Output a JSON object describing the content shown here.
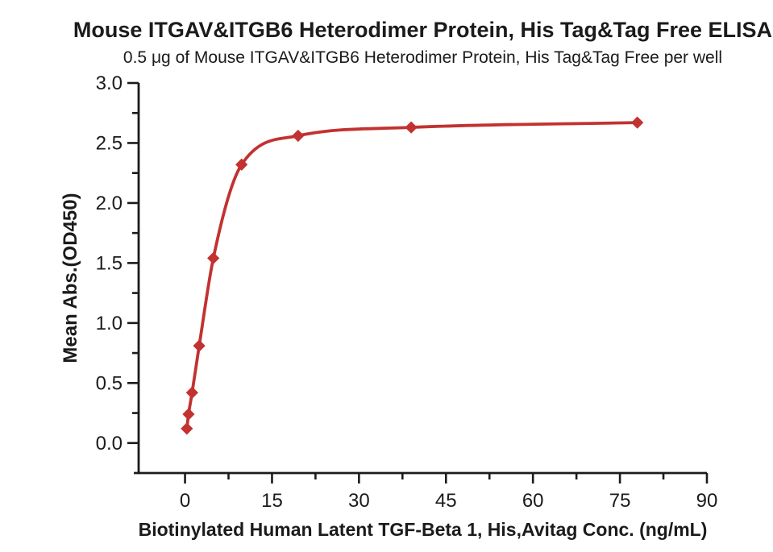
{
  "chart_data": {
    "type": "scatter",
    "title": "Mouse ITGAV&ITGB6 Heterodimer Protein, His Tag&Tag Free ELISA",
    "subtitle": "0.5 μg of Mouse ITGAV&ITGB6 Heterodimer Protein, His Tag&Tag Free per well",
    "xlabel": "Biotinylated Human Latent TGF-Beta 1, His,Avitag Conc. (ng/mL)",
    "ylabel": "Mean Abs.(OD450)",
    "xlim": [
      -8,
      90
    ],
    "ylim": [
      -0.25,
      3.0
    ],
    "x_ticks": [
      {
        "v": 0,
        "label": "0"
      },
      {
        "v": 15,
        "label": "15"
      },
      {
        "v": 30,
        "label": "30"
      },
      {
        "v": 45,
        "label": "45"
      },
      {
        "v": 60,
        "label": "60"
      },
      {
        "v": 75,
        "label": "75"
      },
      {
        "v": 90,
        "label": "90"
      }
    ],
    "x_minor_step": 7.5,
    "y_ticks": [
      {
        "v": 0.0,
        "label": "0.0"
      },
      {
        "v": 0.5,
        "label": "0.5"
      },
      {
        "v": 1.0,
        "label": "1.0"
      },
      {
        "v": 1.5,
        "label": "1.5"
      },
      {
        "v": 2.0,
        "label": "2.0"
      },
      {
        "v": 2.5,
        "label": "2.5"
      },
      {
        "v": 3.0,
        "label": "3.0"
      }
    ],
    "y_minor_step": 0.25,
    "grid": false,
    "legend": "none",
    "series": [
      {
        "marker": "diamond",
        "color": "#c23230",
        "fit_line": true,
        "x": [
          0.31,
          0.61,
          1.22,
          2.44,
          4.88,
          9.75,
          19.5,
          39,
          78
        ],
        "y": [
          0.12,
          0.24,
          0.42,
          0.81,
          1.54,
          2.32,
          2.56,
          2.63,
          2.67
        ]
      }
    ],
    "colors": {
      "curve": "#c23230",
      "axis": "#1b1b1b",
      "text": "#1b1b1b",
      "background": "#ffffff"
    }
  }
}
